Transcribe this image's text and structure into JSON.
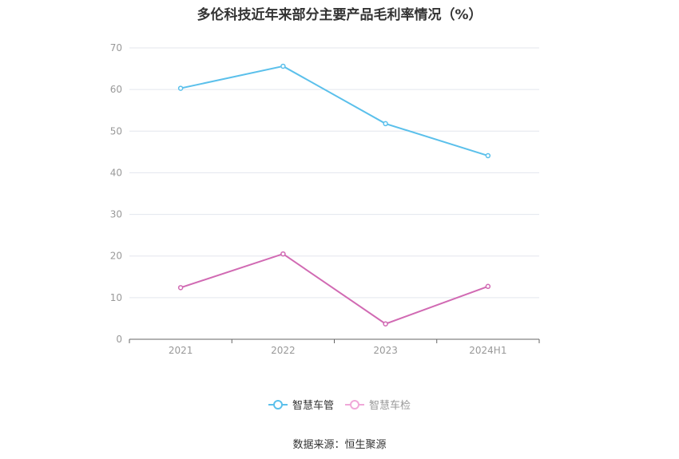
{
  "chart_data": {
    "type": "line",
    "title": "多伦科技近年来部分主要产品毛利率情况（%）",
    "categories": [
      "2021",
      "2022",
      "2023",
      "2024H1"
    ],
    "ylim": [
      0,
      70
    ],
    "yticks": [
      0,
      10,
      20,
      30,
      40,
      50,
      60,
      70
    ],
    "grid": true,
    "legend_position": "bottom",
    "series": [
      {
        "name": "智慧车管",
        "values": [
          60.3,
          65.6,
          51.8,
          44.1
        ],
        "color": "#5bc0eb"
      },
      {
        "name": "智慧车检",
        "values": [
          12.4,
          20.5,
          3.7,
          12.7
        ],
        "color": "#d16ab3",
        "legend_color": "#f0a8d8"
      }
    ]
  },
  "source": "数据来源：恒生聚源"
}
